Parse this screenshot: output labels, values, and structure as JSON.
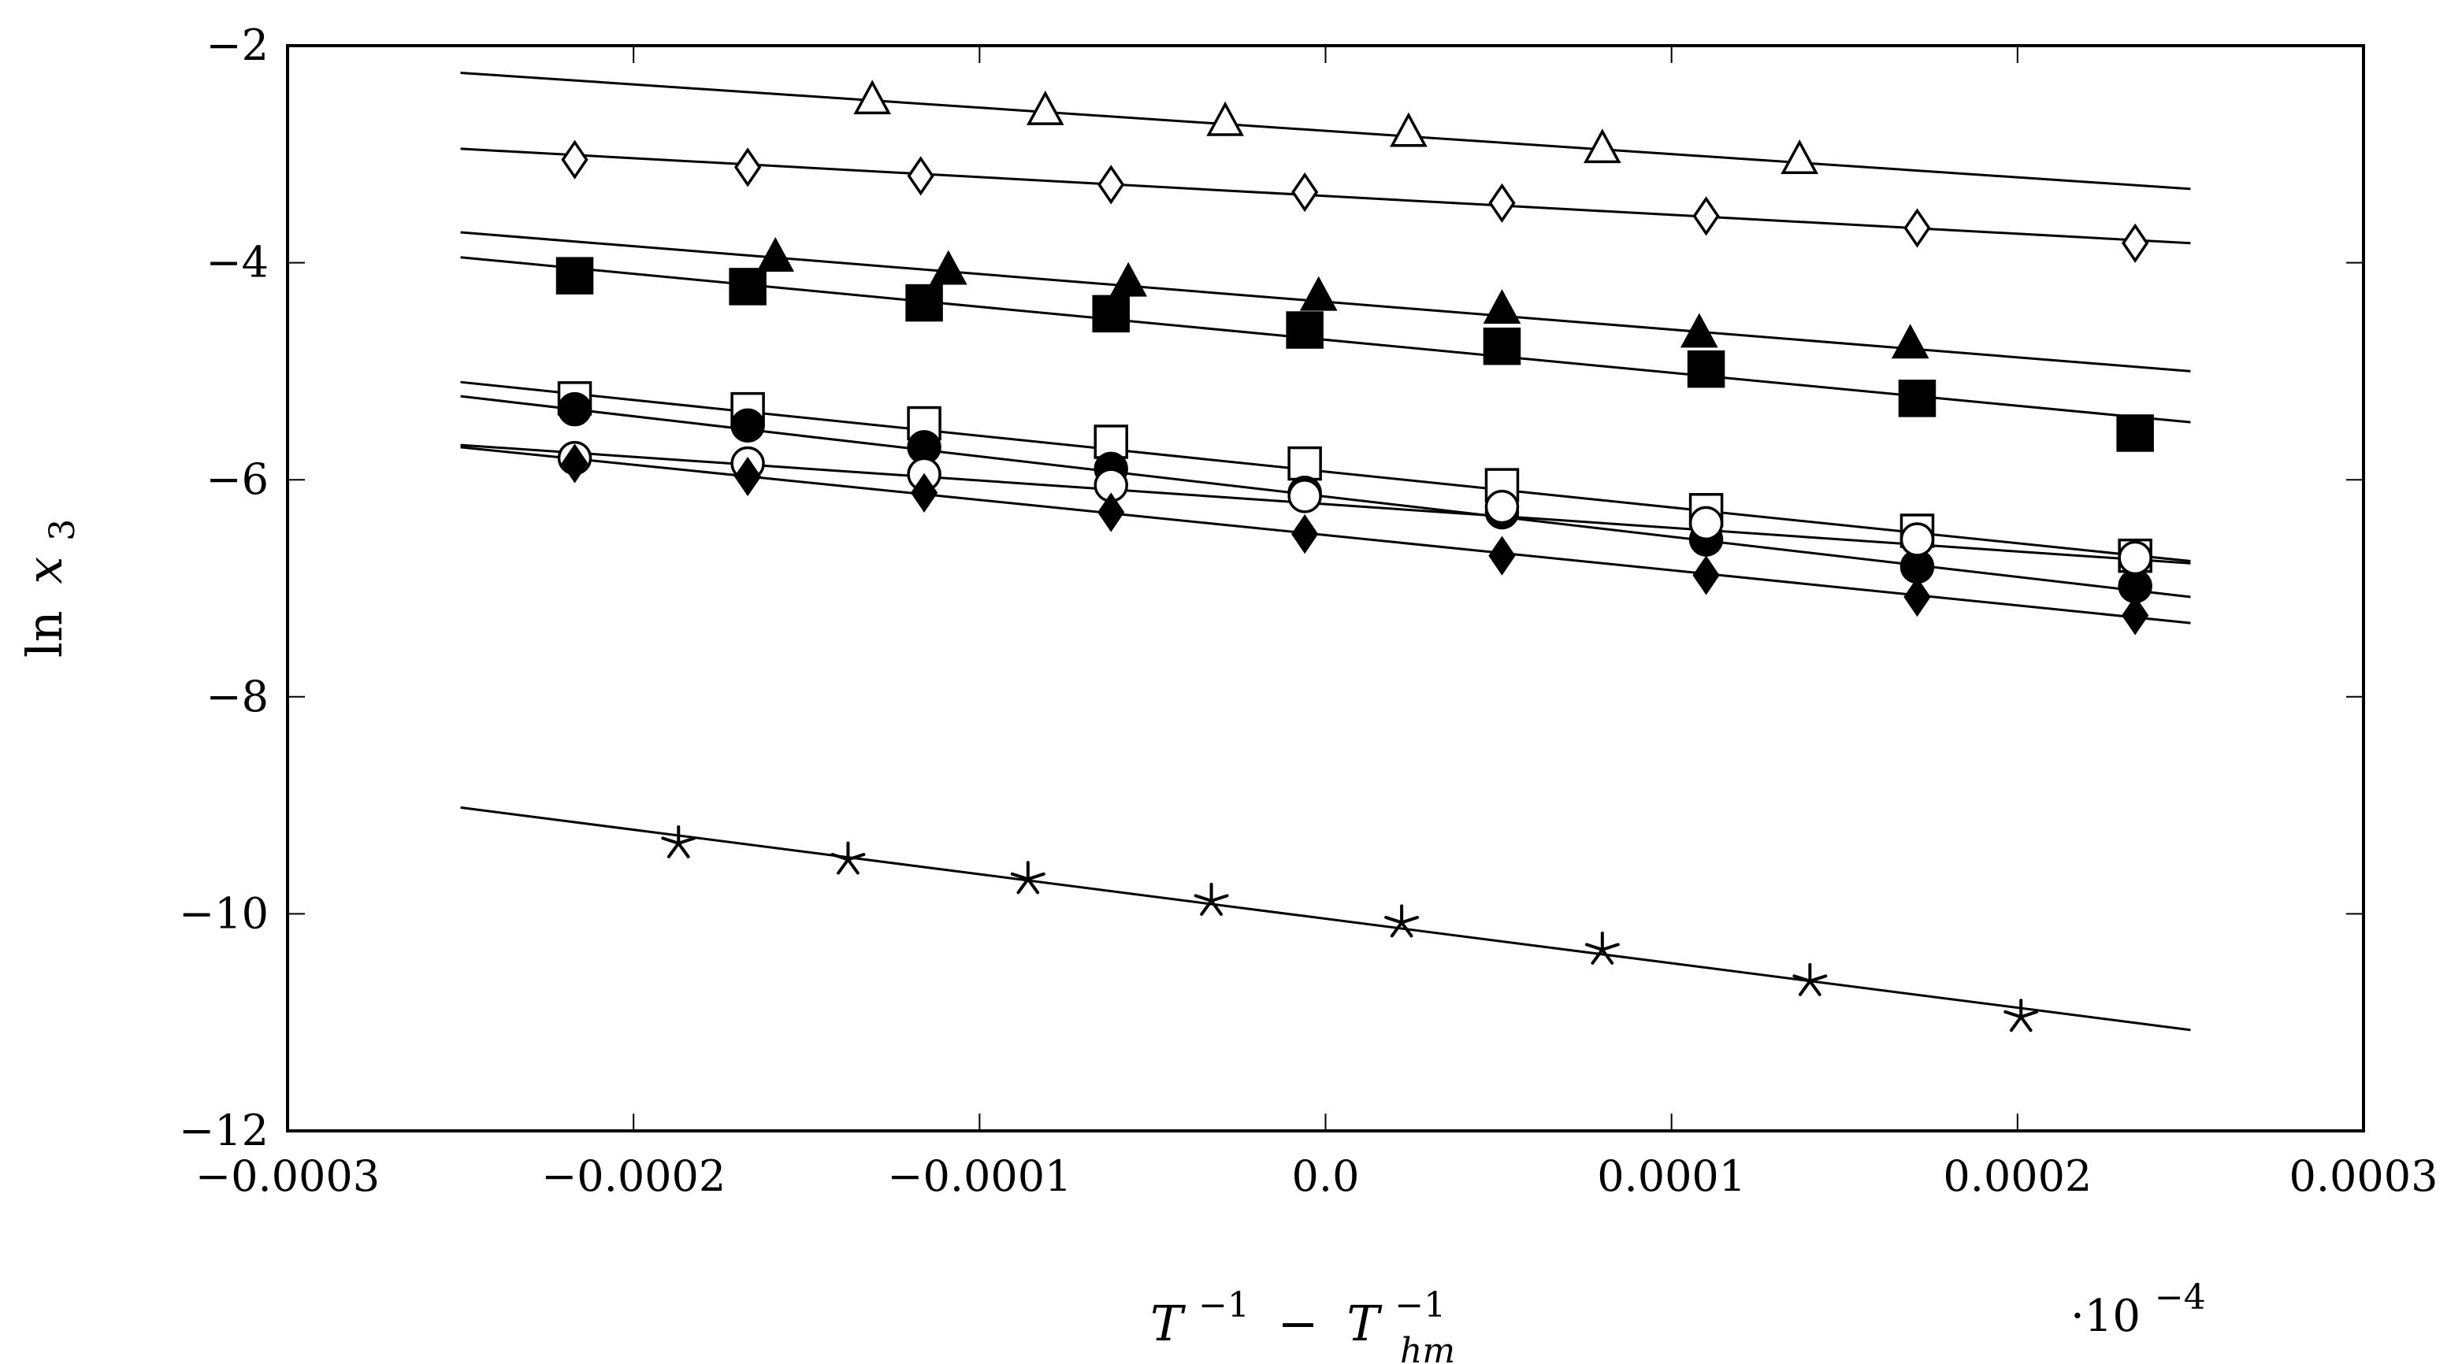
{
  "chart_data": {
    "type": "scatter",
    "title": "",
    "xlabel": "T⁻¹ − T⁻¹ hm",
    "xlabel_main": "T",
    "xlabel_sup1": "−1",
    "xlabel_minus": "−",
    "xlabel_main2": "T",
    "xlabel_sup2": "−1",
    "xlabel_sub2": "hm",
    "ylabel": "ln x₃",
    "ylabel_ln": "ln",
    "ylabel_var": "x",
    "ylabel_sub": "3",
    "scale_note_base": "·10",
    "scale_note_exp": "−4",
    "xlim": [
      -0.0003,
      0.0003
    ],
    "ylim": [
      -12,
      -2
    ],
    "xticks": [
      -0.0003,
      -0.0002,
      -0.0001,
      0.0,
      0.0001,
      0.0002,
      0.0003
    ],
    "xtick_labels": [
      "−0.0003",
      "−0.0002",
      "−0.0001",
      "0.0",
      "0.0001",
      "0.0002",
      "0.0003"
    ],
    "yticks": [
      -12,
      -10,
      -8,
      -6,
      -4,
      -2
    ],
    "ytick_labels": [
      "−12",
      "−10",
      "−8",
      "−6",
      "−4",
      "−2"
    ],
    "grid": false,
    "series": [
      {
        "name": "open-triangle",
        "marker": "triangle",
        "filled": false,
        "x": [
          -0.000131,
          -8.1e-05,
          -2.9e-05,
          2.4e-05,
          8e-05,
          0.000137
        ],
        "y": [
          -2.5,
          -2.6,
          -2.7,
          -2.8,
          -2.95,
          -3.05
        ],
        "fit": {
          "x": [
            -0.00025,
            0.00025
          ],
          "y": [
            -2.25,
            -3.32
          ]
        }
      },
      {
        "name": "open-diamond",
        "marker": "diamond",
        "filled": false,
        "x": [
          -0.000217,
          -0.000167,
          -0.000117,
          -6.2e-05,
          -6e-06,
          5.1e-05,
          0.00011,
          0.000171,
          0.000234
        ],
        "y": [
          -3.05,
          -3.12,
          -3.2,
          -3.28,
          -3.35,
          -3.45,
          -3.57,
          -3.68,
          -3.82
        ],
        "fit": {
          "x": [
            -0.00025,
            0.00025
          ],
          "y": [
            -2.95,
            -3.82
          ]
        }
      },
      {
        "name": "filled-triangle",
        "marker": "triangle",
        "filled": true,
        "x": [
          -0.000159,
          -0.000109,
          -5.7e-05,
          -2e-06,
          5.1e-05,
          0.000108,
          0.000169
        ],
        "y": [
          -3.95,
          -4.07,
          -4.18,
          -4.31,
          -4.43,
          -4.65,
          -4.75
        ],
        "fit": {
          "x": [
            -0.00025,
            0.00025
          ],
          "y": [
            -3.72,
            -5.0
          ]
        }
      },
      {
        "name": "filled-square",
        "marker": "square",
        "filled": true,
        "x": [
          -0.000217,
          -0.000167,
          -0.000116,
          -6.2e-05,
          -6e-06,
          5.1e-05,
          0.00011,
          0.000171,
          0.000234
        ],
        "y": [
          -4.12,
          -4.22,
          -4.37,
          -4.47,
          -4.62,
          -4.77,
          -4.98,
          -5.25,
          -5.57
        ],
        "fit": {
          "x": [
            -0.00025,
            0.00025
          ],
          "y": [
            -3.95,
            -5.47
          ]
        }
      },
      {
        "name": "open-square",
        "marker": "square",
        "filled": false,
        "x": [
          -0.000217,
          -0.000167,
          -0.000116,
          -6.2e-05,
          -6e-06,
          5.1e-05,
          0.00011,
          0.000171,
          0.000234
        ],
        "y": [
          -5.25,
          -5.35,
          -5.48,
          -5.65,
          -5.85,
          -6.05,
          -6.28,
          -6.47,
          -6.7
        ],
        "fit": {
          "x": [
            -0.00025,
            0.00025
          ],
          "y": [
            -5.1,
            -6.75
          ]
        }
      },
      {
        "name": "filled-circle",
        "marker": "circle",
        "filled": true,
        "x": [
          -0.000217,
          -0.000167,
          -0.000116,
          -6.2e-05,
          -6e-06,
          5.1e-05,
          0.00011,
          0.000171,
          0.000234
        ],
        "y": [
          -5.35,
          -5.5,
          -5.7,
          -5.9,
          -6.12,
          -6.3,
          -6.55,
          -6.8,
          -6.98
        ],
        "fit": {
          "x": [
            -0.00025,
            0.00025
          ],
          "y": [
            -5.23,
            -7.08
          ]
        }
      },
      {
        "name": "open-circle",
        "marker": "circle",
        "filled": false,
        "x": [
          -0.000217,
          -0.000167,
          -0.000116,
          -6.2e-05,
          -6e-06,
          5.1e-05,
          0.00011,
          0.000171,
          0.000234
        ],
        "y": [
          -5.8,
          -5.85,
          -5.95,
          -6.05,
          -6.15,
          -6.25,
          -6.4,
          -6.55,
          -6.72
        ],
        "fit": {
          "x": [
            -0.00025,
            0.00025
          ],
          "y": [
            -5.68,
            -6.77
          ]
        }
      },
      {
        "name": "filled-diamond",
        "marker": "diamond",
        "filled": true,
        "x": [
          -0.000217,
          -0.000167,
          -0.000116,
          -6.2e-05,
          -6e-06,
          5.1e-05,
          0.00011,
          0.000171,
          0.000234
        ],
        "y": [
          -5.85,
          -5.97,
          -6.12,
          -6.3,
          -6.5,
          -6.7,
          -6.88,
          -7.08,
          -7.25
        ],
        "fit": {
          "x": [
            -0.00025,
            0.00025
          ],
          "y": [
            -5.7,
            -7.32
          ]
        }
      },
      {
        "name": "asterisk",
        "marker": "star",
        "filled": false,
        "x": [
          -0.000187,
          -0.000138,
          -8.6e-05,
          -3.3e-05,
          2.2e-05,
          8e-05,
          0.00014,
          0.000201
        ],
        "y": [
          -9.35,
          -9.5,
          -9.68,
          -9.88,
          -10.08,
          -10.33,
          -10.62,
          -10.95
        ],
        "fit": {
          "x": [
            -0.00025,
            0.00025
          ],
          "y": [
            -9.02,
            -11.07
          ]
        }
      }
    ]
  }
}
